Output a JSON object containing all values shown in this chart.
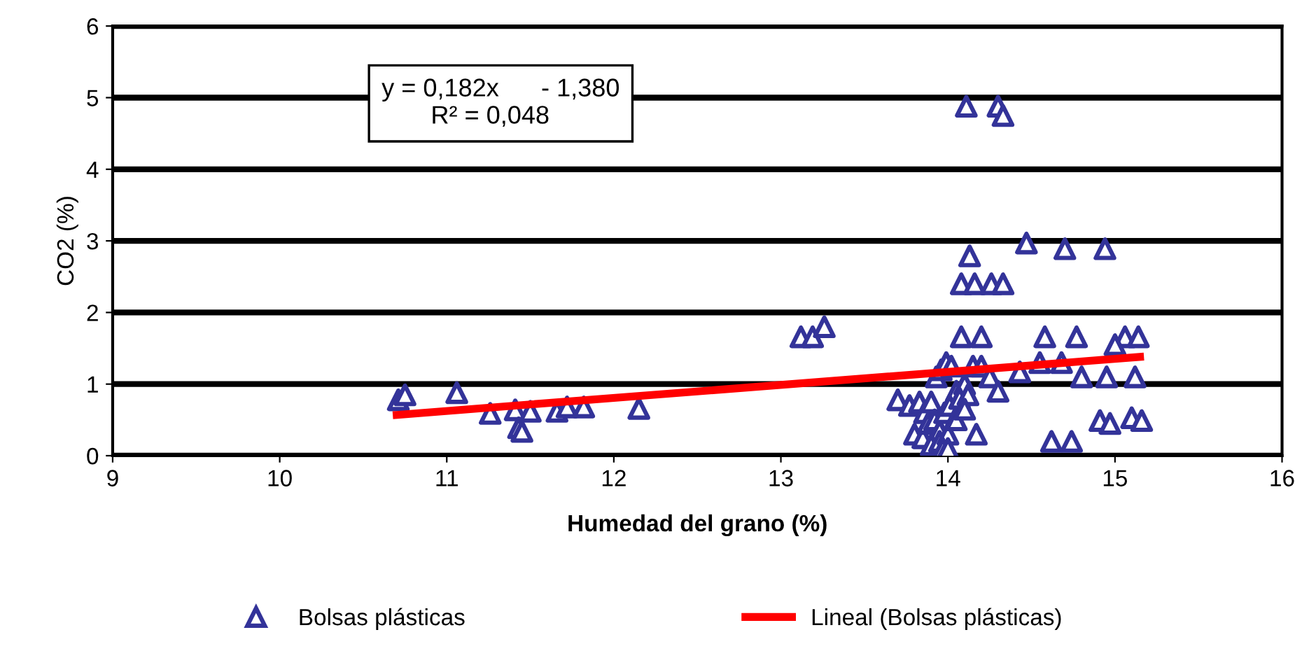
{
  "chart_data": {
    "type": "scatter",
    "xlabel": "Humedad del grano (%)",
    "ylabel": "CO2 (%)",
    "xlim": [
      9,
      16
    ],
    "xticks": [
      9,
      10,
      11,
      12,
      13,
      14,
      15,
      16
    ],
    "ylim": [
      0,
      6
    ],
    "yticks": [
      0,
      1,
      2,
      3,
      4,
      5,
      6
    ],
    "grid": "y",
    "legend": "bottom",
    "annotations": [
      "y = 0,182x      - 1,380\n       R² = 0,048"
    ],
    "series": [
      {
        "name": "Bolsas plásticas",
        "color": "#333399",
        "marker": "triangle",
        "x": [
          10.71,
          10.75,
          11.06,
          11.26,
          11.41,
          11.43,
          11.45,
          11.5,
          11.66,
          11.72,
          11.82,
          12.15,
          13.12,
          13.19,
          13.26,
          14.11,
          14.3,
          14.33,
          14.13,
          14.08,
          14.16,
          14.26,
          14.33,
          14.47,
          14.7,
          14.94,
          14.08,
          14.2,
          14.58,
          14.77,
          15.06,
          15.14,
          15.0,
          14.43,
          14.55,
          14.68,
          14.8,
          14.95,
          15.12,
          14.62,
          14.74,
          14.91,
          14.97,
          15.1,
          15.16,
          13.7,
          13.77,
          13.83,
          13.86,
          13.9,
          13.93,
          13.96,
          13.99,
          14.02,
          14.05,
          14.1,
          14.15,
          14.2,
          13.8,
          13.85,
          13.88,
          13.92,
          13.95,
          13.98,
          14.01,
          14.04,
          14.07,
          14.12,
          14.25,
          14.3,
          13.9,
          13.95,
          14.0,
          14.05,
          14.1,
          14.17,
          13.97,
          14.0
        ],
        "values": [
          0.78,
          0.85,
          0.88,
          0.59,
          0.64,
          0.39,
          0.34,
          0.62,
          0.62,
          0.68,
          0.68,
          0.66,
          1.66,
          1.66,
          1.8,
          4.88,
          4.88,
          4.75,
          2.79,
          2.4,
          2.4,
          2.4,
          2.4,
          2.97,
          2.89,
          2.89,
          1.66,
          1.66,
          1.66,
          1.66,
          1.66,
          1.66,
          1.55,
          1.17,
          1.3,
          1.3,
          1.1,
          1.1,
          1.1,
          0.2,
          0.2,
          0.49,
          0.45,
          0.53,
          0.49,
          0.78,
          0.7,
          0.75,
          0.6,
          0.75,
          1.1,
          1.2,
          1.3,
          1.25,
          0.9,
          1.0,
          1.25,
          1.25,
          0.3,
          0.25,
          0.45,
          0.5,
          0.35,
          0.6,
          0.7,
          0.5,
          0.8,
          0.85,
          1.1,
          0.9,
          0.15,
          0.2,
          0.3,
          0.5,
          0.65,
          0.3,
          0.1,
          0.1
        ]
      },
      {
        "name": "Lineal (Bolsas plásticas)",
        "color": "#ff0000",
        "type": "line",
        "x": [
          10.7,
          15.15
        ],
        "values": [
          0.57,
          1.38
        ]
      }
    ]
  }
}
